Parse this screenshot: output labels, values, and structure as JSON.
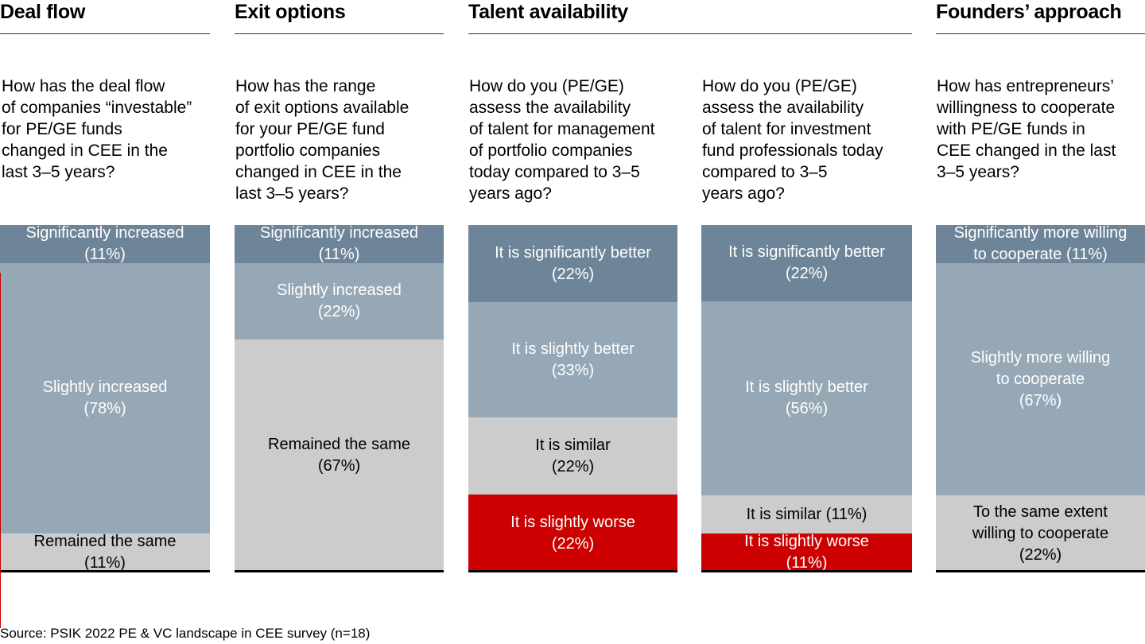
{
  "headers": {
    "deal_flow": "Deal flow",
    "exit_options": "Exit options",
    "talent": "Talent availability",
    "founders": "Founders’ approach"
  },
  "questions": {
    "deal_flow": "How has the deal flow\nof companies “investable”\nfor PE/GE funds\nchanged in CEE in the\nlast 3–5 years?",
    "exit_options": "How has the range\nof exit options available\nfor your PE/GE fund\nportfolio companies\nchanged in CEE in the\nlast 3–5 years?",
    "talent_management": "How do you (PE/GE)\nassess the availability\nof talent for management\nof portfolio companies\ntoday compared to 3–5\nyears ago?",
    "talent_investment": "How do you (PE/GE)\nassess the availability\nof talent for investment\nfund professionals today\ncompared to 3–5\nyears ago?",
    "founders": "How has entrepreneurs’\nwillingness to cooperate\nwith PE/GE funds in\nCEE changed in the last\n3–5 years?"
  },
  "source": "Source: PSIK 2022 PE & VC landscape in CEE survey (n=18)",
  "colors": {
    "dark": "#6e8599",
    "medium": "#96a8b5",
    "light": "#cccccc",
    "red": "#cc0000",
    "white_text": "#ffffff",
    "black_text": "#000000"
  },
  "chart_data": {
    "type": "bar",
    "stacked": true,
    "unit": "%",
    "columns": [
      {
        "segments": [
          {
            "label": "Significantly increased\n(11%)",
            "value": 11,
            "color": "#6e8599",
            "text_color": "#ffffff"
          },
          {
            "label": "Slightly increased\n(78%)",
            "value": 78,
            "color": "#96a8b5",
            "text_color": "#ffffff"
          },
          {
            "label": "Remained the same\n(11%)",
            "value": 11,
            "color": "#cccccc",
            "text_color": "#000000"
          }
        ]
      },
      {
        "segments": [
          {
            "label": "Significantly increased\n(11%)",
            "value": 11,
            "color": "#6e8599",
            "text_color": "#ffffff"
          },
          {
            "label": "Slightly increased\n(22%)",
            "value": 22,
            "color": "#96a8b5",
            "text_color": "#ffffff"
          },
          {
            "label": "Remained the same\n(67%)",
            "value": 67,
            "color": "#cccccc",
            "text_color": "#000000"
          }
        ]
      },
      {
        "segments": [
          {
            "label": "It is significantly better\n(22%)",
            "value": 22,
            "color": "#6e8599",
            "text_color": "#ffffff"
          },
          {
            "label": "It is slightly better\n(33%)",
            "value": 33,
            "color": "#96a8b5",
            "text_color": "#ffffff"
          },
          {
            "label": "It is similar\n(22%)",
            "value": 22,
            "color": "#cccccc",
            "text_color": "#000000"
          },
          {
            "label": "It is slightly worse\n(22%)",
            "value": 22,
            "color": "#cc0000",
            "text_color": "#ffffff"
          }
        ]
      },
      {
        "segments": [
          {
            "label": "It is significantly better\n(22%)",
            "value": 22,
            "color": "#6e8599",
            "text_color": "#ffffff"
          },
          {
            "label": "It is slightly better\n(56%)",
            "value": 56,
            "color": "#96a8b5",
            "text_color": "#ffffff"
          },
          {
            "label": "It is similar (11%)",
            "value": 11,
            "color": "#cccccc",
            "text_color": "#000000"
          },
          {
            "label": "It is slightly worse\n(11%)",
            "value": 11,
            "color": "#cc0000",
            "text_color": "#ffffff"
          }
        ]
      },
      {
        "segments": [
          {
            "label": "Significantly more willing\nto cooperate (11%)",
            "value": 11,
            "color": "#6e8599",
            "text_color": "#ffffff"
          },
          {
            "label": "Slightly more willing\nto cooperate\n(67%)",
            "value": 67,
            "color": "#96a8b5",
            "text_color": "#ffffff"
          },
          {
            "label": "To the same extent\nwilling to cooperate\n(22%)",
            "value": 22,
            "color": "#cccccc",
            "text_color": "#000000"
          }
        ]
      }
    ]
  }
}
